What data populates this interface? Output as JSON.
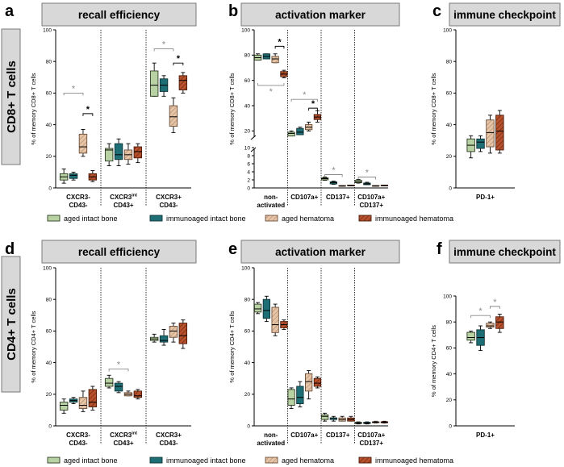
{
  "rows": [
    {
      "label": "CD8+ T cells"
    },
    {
      "label": "CD4+ T cells"
    }
  ],
  "legend": {
    "labels": [
      "aged intact bone",
      "immunoaged intact bone",
      "aged hematoma",
      "immunoaged hematoma"
    ]
  },
  "colors": {
    "aged_intact_bone": "#b9d2a4",
    "immunoaged_intact_bone": "#1e6f75",
    "aged_hematoma": "#e7c4a6",
    "immunoaged_hematoma": "#b8502b",
    "banner": "#d8d8d8",
    "sig_black": "#000000",
    "sig_gray": "#8a8a8a"
  },
  "chart_data": [
    {
      "panel": "a",
      "title": "recall efficiency",
      "type": "box",
      "ylabel": "% of memory CD8+ T cells",
      "ylim": [
        0,
        100
      ],
      "yticks": [
        0,
        20,
        40,
        60,
        80,
        100
      ],
      "categories": [
        "CXCR3-\nCD43-",
        "CXCR3int\nCD43+",
        "CXCR3+\nCD43-"
      ],
      "groups": [
        [
          [
            3,
            5,
            7,
            9,
            12
          ],
          [
            5,
            6,
            8,
            9,
            10
          ],
          [
            20,
            22,
            26,
            34,
            37
          ],
          [
            4,
            5,
            7,
            9,
            11
          ]
        ],
        [
          [
            14,
            17,
            24,
            25,
            28
          ],
          [
            14,
            18,
            21,
            28,
            31
          ],
          [
            15,
            18,
            21,
            24,
            28
          ],
          [
            16,
            19,
            23,
            26,
            28
          ]
        ],
        [
          [
            58,
            58,
            65,
            74,
            79
          ],
          [
            58,
            61,
            65,
            69,
            71
          ],
          [
            35,
            39,
            45,
            52,
            57
          ],
          [
            60,
            62,
            68,
            71,
            73
          ]
        ]
      ],
      "significance": [
        {
          "group": 0,
          "from": 0,
          "to": 2,
          "level": 60,
          "mark": "*",
          "color": "gray"
        },
        {
          "group": 0,
          "from": 2,
          "to": 3,
          "level": 47,
          "mark": "*",
          "color": "black"
        },
        {
          "group": 2,
          "from": 0,
          "to": 2,
          "level": 88,
          "mark": "*",
          "color": "gray"
        },
        {
          "group": 2,
          "from": 2,
          "to": 3,
          "level": 79,
          "mark": "*",
          "color": "black"
        }
      ]
    },
    {
      "panel": "b",
      "title": "activation marker",
      "type": "box",
      "ylabel": "% of memory CD8+ T cells",
      "axis_break": {
        "lower": [
          0,
          10
        ],
        "upper": [
          10,
          100
        ]
      },
      "yticks": [
        0,
        2,
        4,
        6,
        8,
        10,
        20,
        40,
        60,
        80,
        100
      ],
      "categories": [
        "non-\nactivated",
        "CD107a+",
        "CD137+",
        "CD107a+\nCD137+"
      ],
      "groups": [
        [
          [
            76,
            76,
            78,
            80,
            81
          ],
          [
            77,
            77,
            79,
            81,
            81
          ],
          [
            74,
            74,
            77,
            79,
            81
          ],
          [
            62,
            63,
            65,
            67,
            68
          ]
        ],
        [
          [
            16,
            16,
            18,
            19,
            20
          ],
          [
            17,
            17,
            19,
            22,
            23
          ],
          [
            20,
            21,
            23,
            25,
            27
          ],
          [
            27,
            29,
            31,
            33,
            36
          ]
        ],
        [
          [
            1.9,
            2.0,
            2.3,
            2.5,
            2.7
          ],
          [
            0.9,
            1.0,
            1.3,
            1.5,
            1.7
          ],
          [
            0.4,
            0.4,
            0.5,
            0.6,
            0.6
          ],
          [
            0.5,
            0.5,
            0.6,
            0.7,
            0.7
          ]
        ],
        [
          [
            1.2,
            1.3,
            1.5,
            1.9,
            2.1
          ],
          [
            0.8,
            0.8,
            1.0,
            1.2,
            1.4
          ],
          [
            0.4,
            0.4,
            0.5,
            0.6,
            0.6
          ],
          [
            0.5,
            0.5,
            0.6,
            0.7,
            0.7
          ]
        ]
      ],
      "significance": [
        {
          "group": 0,
          "from": 2,
          "to": 3,
          "level": 87,
          "mark": "*",
          "color": "black"
        },
        {
          "group": 0,
          "from": 0,
          "to": 3,
          "level": 56,
          "mark": "*",
          "color": "gray",
          "below": true
        },
        {
          "group": 1,
          "from": 0,
          "to": 3,
          "level": 45,
          "mark": "*",
          "color": "gray"
        },
        {
          "group": 1,
          "from": 2,
          "to": 3,
          "level": 38,
          "mark": "*",
          "color": "black"
        },
        {
          "group": 2,
          "from": 0,
          "to": 2,
          "level": 3.3,
          "mark": "*",
          "color": "gray"
        },
        {
          "group": 3,
          "from": 0,
          "to": 2,
          "level": 2.7,
          "mark": "*",
          "color": "gray"
        }
      ]
    },
    {
      "panel": "c",
      "title": "immune checkpoint",
      "type": "box",
      "ylabel": "% of memory CD8+ T cells",
      "ylim": [
        0,
        100
      ],
      "yticks": [
        0,
        20,
        40,
        60,
        80,
        100
      ],
      "categories": [
        "PD-1+"
      ],
      "groups": [
        [
          [
            19,
            23,
            27,
            31,
            33
          ],
          [
            23,
            25,
            29,
            31,
            33
          ],
          [
            22,
            26,
            35,
            43,
            46
          ],
          [
            22,
            24,
            36,
            46,
            49
          ]
        ]
      ],
      "significance": []
    },
    {
      "panel": "d",
      "title": "recall efficiency",
      "type": "box",
      "ylabel": "% of memory CD4+ T cells",
      "ylim": [
        0,
        100
      ],
      "yticks": [
        0,
        20,
        40,
        60,
        80,
        100
      ],
      "categories": [
        "CXCR3-\nCD43-",
        "CXCR3int\nCD43+",
        "CXCR3+\nCD43-"
      ],
      "groups": [
        [
          [
            8,
            10,
            13,
            15,
            17
          ],
          [
            14,
            15,
            16,
            17,
            18
          ],
          [
            9,
            11,
            13,
            18,
            22
          ],
          [
            10,
            12,
            15,
            23,
            25
          ]
        ],
        [
          [
            24,
            25,
            27,
            30,
            32
          ],
          [
            21,
            22,
            25,
            27,
            28
          ],
          [
            19,
            19,
            20,
            21,
            22
          ],
          [
            17,
            18,
            19,
            22,
            23
          ]
        ],
        [
          [
            53,
            54,
            55,
            56,
            58
          ],
          [
            51,
            53,
            54,
            57,
            61
          ],
          [
            53,
            56,
            60,
            63,
            65
          ],
          [
            49,
            52,
            57,
            65,
            67
          ]
        ]
      ],
      "significance": [
        {
          "group": 1,
          "from": 0,
          "to": 2,
          "level": 36,
          "mark": "*",
          "color": "gray"
        }
      ]
    },
    {
      "panel": "e",
      "title": "activation marker",
      "type": "box",
      "ylabel": "% of memory CD4+ T cells",
      "ylim": [
        0,
        100
      ],
      "yticks": [
        0,
        20,
        40,
        60,
        80,
        100
      ],
      "categories": [
        "non-\nactivated",
        "CD107a+",
        "CD137+",
        "CD107a+\nCD137+"
      ],
      "groups": [
        [
          [
            71,
            72,
            74,
            77,
            78
          ],
          [
            66,
            68,
            73,
            80,
            82
          ],
          [
            57,
            59,
            64,
            75,
            77
          ],
          [
            61,
            62,
            64,
            66,
            67
          ]
        ],
        [
          [
            11,
            13,
            17,
            23,
            24
          ],
          [
            12,
            14,
            18,
            25,
            28
          ],
          [
            17,
            22,
            28,
            33,
            35
          ],
          [
            24,
            25,
            27,
            30,
            31
          ]
        ],
        [
          [
            3,
            4,
            6,
            7,
            8
          ],
          [
            3,
            4,
            5,
            5,
            6
          ],
          [
            3,
            3,
            4,
            5,
            6
          ],
          [
            3,
            3,
            4,
            5,
            6
          ]
        ],
        [
          [
            1.2,
            1.5,
            1.8,
            2.2,
            2.5
          ],
          [
            1.2,
            1.5,
            1.8,
            2.2,
            2.5
          ],
          [
            1.8,
            2.0,
            2.3,
            2.6,
            2.9
          ],
          [
            1.8,
            2.0,
            2.3,
            2.6,
            2.9
          ]
        ]
      ],
      "significance": []
    },
    {
      "panel": "f",
      "title": "immune checkpoint",
      "type": "box",
      "ylabel": "% of memory CD4+ T cells",
      "ylim": [
        0,
        100
      ],
      "yticks": [
        0,
        20,
        40,
        60,
        80,
        100
      ],
      "categories": [
        "PD-1+"
      ],
      "groups": [
        [
          [
            64,
            66,
            68,
            72,
            73
          ],
          [
            58,
            62,
            68,
            74,
            77
          ],
          [
            75,
            76,
            77,
            79,
            80
          ],
          [
            72,
            75,
            80,
            84,
            86
          ]
        ]
      ],
      "significance": [
        {
          "group": 0,
          "from": 0,
          "to": 2,
          "level": 85,
          "mark": "*",
          "color": "gray"
        },
        {
          "group": 0,
          "from": 2,
          "to": 3,
          "level": 92,
          "mark": "*",
          "color": "gray"
        }
      ]
    }
  ]
}
